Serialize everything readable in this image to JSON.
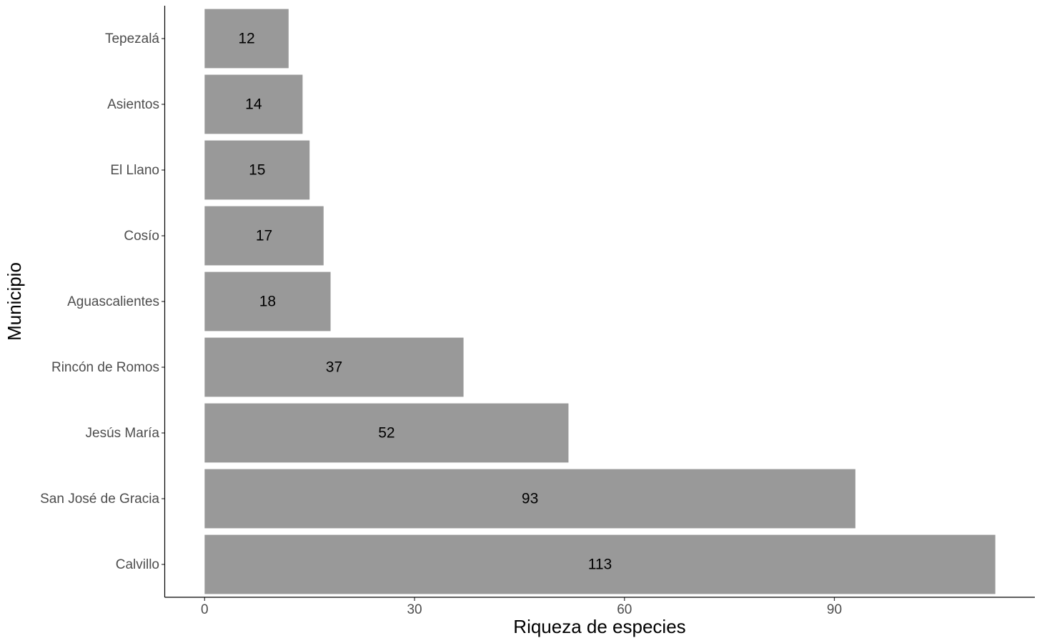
{
  "chart_data": {
    "type": "bar",
    "x_label": "Riqueza de especies",
    "y_label": "Municipio",
    "categories": [
      "Tepezalá",
      "Asientos",
      "El Llano",
      "Cosío",
      "Aguascalientes",
      "Rincón de Romos",
      "Jesús María",
      "San José de Gracia",
      "Calvillo"
    ],
    "values": [
      12,
      14,
      15,
      17,
      18,
      37,
      52,
      93,
      113
    ],
    "color": "#999999",
    "xlim": [
      -5.65,
      118.65
    ],
    "xticks": [
      0,
      30,
      60,
      90
    ],
    "grid": false
  }
}
